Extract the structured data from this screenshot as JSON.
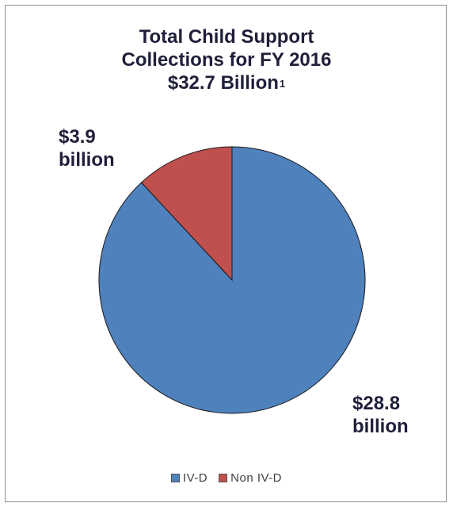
{
  "chart_data": {
    "type": "pie",
    "title_lines": [
      "Total Child Support",
      "Collections for FY 2016",
      "$32.7 Billion"
    ],
    "title_superscript": "1",
    "slices": [
      {
        "name": "IV-D",
        "value": 28.8,
        "label_lines": [
          "$28.8",
          "billion"
        ],
        "color": "#4f81bd"
      },
      {
        "name": "Non IV-D",
        "value": 3.9,
        "label_lines": [
          "$3.9",
          "billion"
        ],
        "color": "#c0504d"
      }
    ],
    "legend": [
      "IV-D",
      "Non IV-D"
    ],
    "legend_placement": "bottom",
    "start_angle": "12 o'clock",
    "direction": "clockwise"
  }
}
